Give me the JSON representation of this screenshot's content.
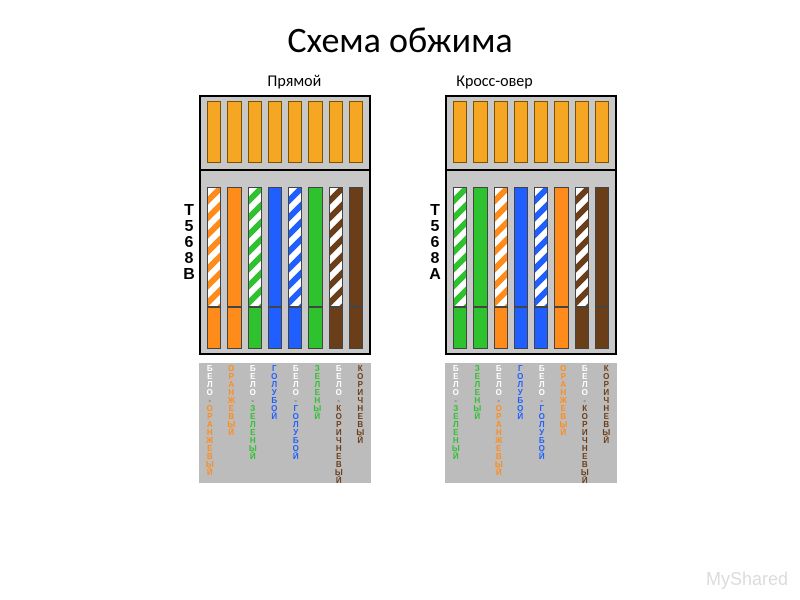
{
  "title": "Схема обжима",
  "subtitles": {
    "left": "Прямой",
    "right": "Кросс-овер"
  },
  "colors": {
    "connector_bg": "#c8c8c8",
    "pin_fill": "#f5a623",
    "pin_border": "#7a5200",
    "label_bg": "#bcbcbc",
    "orange": "#ff8c1a",
    "green": "#2ec22e",
    "blue": "#1f5fff",
    "brown": "#6b3e1a",
    "white": "#ffffff",
    "black": "#000000",
    "watermark": "#dcdcdc"
  },
  "standards": {
    "left": "T568B",
    "right": "T568A"
  },
  "wires": {
    "T568B": [
      {
        "type": "striped",
        "stripe": "#ff8c1a",
        "label": "БЕЛО-ОРАНЖЕВЫЙ",
        "label_color": "#ff8c1a",
        "label_top_white": true
      },
      {
        "type": "solid",
        "color": "#ff8c1a",
        "label": "ОРАНЖЕВЫЙ",
        "label_color": "#ff8c1a"
      },
      {
        "type": "striped",
        "stripe": "#2ec22e",
        "label": "БЕЛО-ЗЕЛЕНЫЙ",
        "label_color": "#2ec22e",
        "label_top_white": true
      },
      {
        "type": "solid",
        "color": "#1f5fff",
        "label": "ГОЛУБОЙ",
        "label_color": "#1f5fff"
      },
      {
        "type": "striped",
        "stripe": "#1f5fff",
        "label": "БЕЛО-ГОЛУБОЙ",
        "label_color": "#1f5fff",
        "label_top_white": true
      },
      {
        "type": "solid",
        "color": "#2ec22e",
        "label": "ЗЕЛЕНЫЙ",
        "label_color": "#2ec22e"
      },
      {
        "type": "striped",
        "stripe": "#6b3e1a",
        "label": "БЕЛО-КОРИЧНЕВЫЙ",
        "label_color": "#6b3e1a",
        "label_top_white": true
      },
      {
        "type": "solid",
        "color": "#6b3e1a",
        "label": "КОРИЧНЕВЫЙ",
        "label_color": "#6b3e1a"
      }
    ],
    "T568A": [
      {
        "type": "striped",
        "stripe": "#2ec22e",
        "label": "БЕЛО-ЗЕЛЕНЫЙ",
        "label_color": "#2ec22e",
        "label_top_white": true
      },
      {
        "type": "solid",
        "color": "#2ec22e",
        "label": "ЗЕЛЕНЫЙ",
        "label_color": "#2ec22e"
      },
      {
        "type": "striped",
        "stripe": "#ff8c1a",
        "label": "БЕЛО-ОРАНЖЕВЫЙ",
        "label_color": "#ff8c1a",
        "label_top_white": true
      },
      {
        "type": "solid",
        "color": "#1f5fff",
        "label": "ГОЛУБОЙ",
        "label_color": "#1f5fff"
      },
      {
        "type": "striped",
        "stripe": "#1f5fff",
        "label": "БЕЛО-ГОЛУБОЙ",
        "label_color": "#1f5fff",
        "label_top_white": true
      },
      {
        "type": "solid",
        "color": "#ff8c1a",
        "label": "ОРАНЖЕВЫЙ",
        "label_color": "#ff8c1a"
      },
      {
        "type": "striped",
        "stripe": "#6b3e1a",
        "label": "БЕЛО-КОРИЧНЕВЫЙ",
        "label_color": "#6b3e1a",
        "label_top_white": true
      },
      {
        "type": "solid",
        "color": "#6b3e1a",
        "label": "КОРИЧНЕВЫЙ",
        "label_color": "#6b3e1a"
      }
    ]
  },
  "watermark": "MyShared"
}
